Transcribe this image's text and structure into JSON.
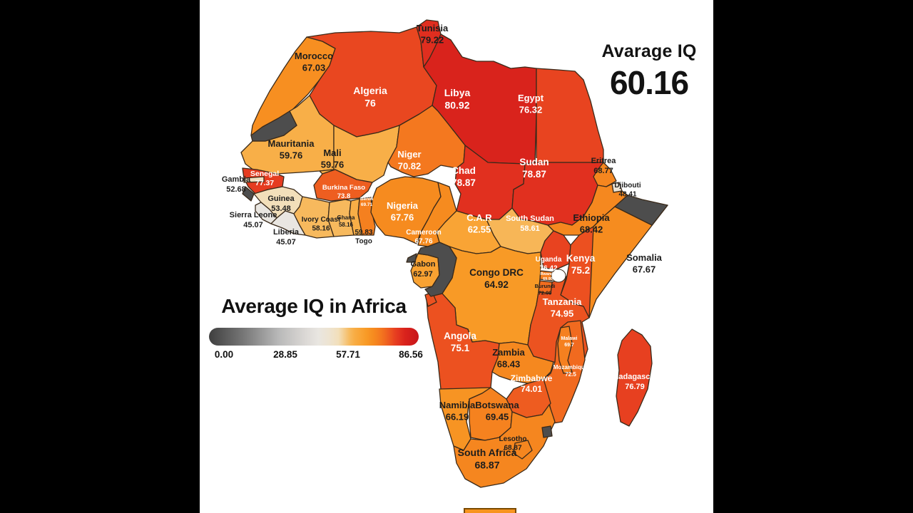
{
  "header": {
    "title": "Avarage IQ",
    "value": "60.16"
  },
  "legend": {
    "title": "Average IQ in Africa",
    "ticks": [
      "0.00",
      "28.85",
      "57.71",
      "86.56"
    ],
    "min": 0,
    "max": 86.56
  },
  "countries": [
    {
      "name": "Morocco",
      "value": "67.03"
    },
    {
      "name": "Algeria",
      "value": "76"
    },
    {
      "name": "Tunisia",
      "value": "79.22"
    },
    {
      "name": "Libya",
      "value": "80.92"
    },
    {
      "name": "Egypt",
      "value": "76.32"
    },
    {
      "name": "Mauritania",
      "value": "59.76"
    },
    {
      "name": "Mali",
      "value": "59.76"
    },
    {
      "name": "Niger",
      "value": "70.82"
    },
    {
      "name": "Chad",
      "value": "78.87"
    },
    {
      "name": "Sudan",
      "value": "78.87"
    },
    {
      "name": "Eritrea",
      "value": "68.77"
    },
    {
      "name": "Djibouti",
      "value": "48.41"
    },
    {
      "name": "Ethiopia",
      "value": "68.42"
    },
    {
      "name": "Somalia",
      "value": "67.67"
    },
    {
      "name": "Senegal",
      "value": "77.37"
    },
    {
      "name": "Gambia",
      "value": "52.68"
    },
    {
      "name": "Guinea",
      "value": "53.48"
    },
    {
      "name": "Sierra Leone",
      "value": "45.07"
    },
    {
      "name": "Liberia",
      "value": "45.07"
    },
    {
      "name": "Ivory Coast",
      "value": "58.16"
    },
    {
      "name": "Ghana",
      "value": "58.16"
    },
    {
      "name": "Togo",
      "value": "59.83"
    },
    {
      "name": "Benin",
      "value": "69.71"
    },
    {
      "name": "Burkina Faso",
      "value": "73.8"
    },
    {
      "name": "Nigeria",
      "value": "67.76"
    },
    {
      "name": "Cameroon",
      "value": "67.76"
    },
    {
      "name": "C.A.R",
      "value": "62.55"
    },
    {
      "name": "South Sudan",
      "value": "58.61"
    },
    {
      "name": "Gabon",
      "value": "62.97"
    },
    {
      "name": "Congo DRC",
      "value": "64.92"
    },
    {
      "name": "Uganda",
      "value": "76.42"
    },
    {
      "name": "Kenya",
      "value": "75.2"
    },
    {
      "name": "Tanzania",
      "value": "74.95"
    },
    {
      "name": "Rwanda",
      "value": "69.95"
    },
    {
      "name": "Burundi",
      "value": "72.09"
    },
    {
      "name": "Angola",
      "value": "75.1"
    },
    {
      "name": "Zambia",
      "value": "68.43"
    },
    {
      "name": "Mozambique",
      "value": "72.5"
    },
    {
      "name": "Malawi",
      "value": "69.7"
    },
    {
      "name": "Zimbabwe",
      "value": "74.01"
    },
    {
      "name": "Namibia",
      "value": "66.19"
    },
    {
      "name": "Botswana",
      "value": "69.45"
    },
    {
      "name": "South Africa",
      "value": "68.87"
    },
    {
      "name": "Lesotho",
      "value": "68.87"
    },
    {
      "name": "Madagascar",
      "value": "76.79"
    }
  ],
  "no_data_regions": [
    "Western Sahara",
    "Guinea-Bissau",
    "Equatorial Guinea",
    "Republic of the Congo",
    "Somaliland",
    "Eswatini"
  ],
  "colors": {
    "scale": [
      [
        0,
        "#3f3f3f"
      ],
      [
        15,
        "#7a7a7a"
      ],
      [
        28.85,
        "#b9b9b9"
      ],
      [
        40,
        "#dcd9d6"
      ],
      [
        45.07,
        "#e9e6e1"
      ],
      [
        50,
        "#eee3cf"
      ],
      [
        53.5,
        "#f2dfba"
      ],
      [
        58.2,
        "#f7b95c"
      ],
      [
        60,
        "#f8ad45"
      ],
      [
        63,
        "#f9a232"
      ],
      [
        65,
        "#f89a26"
      ],
      [
        67.8,
        "#f68b1f"
      ],
      [
        69,
        "#f5851f"
      ],
      [
        70.8,
        "#f4781f"
      ],
      [
        72.5,
        "#f16a1f"
      ],
      [
        74,
        "#ee5c20"
      ],
      [
        75.2,
        "#ec5020"
      ],
      [
        76.4,
        "#e84320"
      ],
      [
        78.9,
        "#e1301f"
      ],
      [
        81,
        "#d9221c"
      ],
      [
        86.56,
        "#c8151a"
      ]
    ],
    "no_data": "#4d4d4d",
    "border": "#3a2a1a",
    "label_light": "#ffffff",
    "label_dark": "#1d1d1d",
    "background": "#ffffff",
    "letterbox": "#000000",
    "caption_fragment": "#f7941f"
  }
}
